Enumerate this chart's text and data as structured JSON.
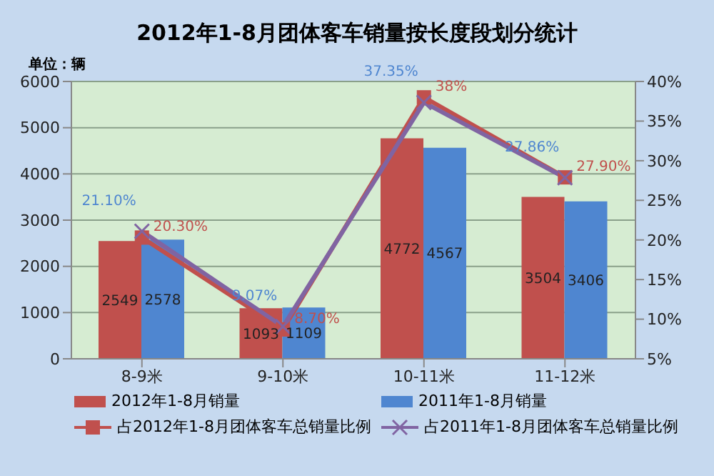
{
  "chart_data": {
    "type": "bar",
    "title": "2012年1-8月团体客车销量按长度段划分统计",
    "ylabel": "单位：辆",
    "categories": [
      "8-9米",
      "9-10米",
      "10-11米",
      "11-12米"
    ],
    "series": [
      {
        "name": "2012年1-8月销量",
        "color": "#c0504d",
        "values": [
          2549,
          1093,
          4772,
          3504
        ],
        "value_labels": [
          "2549",
          "1093",
          "4772",
          "3504"
        ]
      },
      {
        "name": "2011年1-8月销量",
        "color": "#4f86d0",
        "values": [
          2578,
          1109,
          4567,
          3406
        ],
        "value_labels": [
          "2578",
          "1109",
          "4567",
          "3406"
        ]
      },
      {
        "name": "占2012年1-8月团体客车总销量比例",
        "type": "line",
        "axis": "y2",
        "marker": "square",
        "color": "#c0504d",
        "values": [
          20.3,
          8.7,
          38,
          27.9
        ],
        "value_labels": [
          "20.30%",
          "8.70%",
          "38%",
          "27.90%"
        ]
      },
      {
        "name": "占2011年1-8月团体客车总销量比例",
        "type": "line",
        "axis": "y2",
        "marker": "cross",
        "color": "#8064a2",
        "values": [
          21.1,
          9.07,
          37.35,
          27.86
        ],
        "value_labels": [
          "21.10%",
          "9.07%",
          "37.35%",
          "27.86%"
        ]
      }
    ],
    "ylim": [
      0,
      6000
    ],
    "yticks": [
      0,
      1000,
      2000,
      3000,
      4000,
      5000,
      6000
    ],
    "y2lim": [
      5,
      40
    ],
    "y2ticks": [
      {
        "value": 5,
        "label": "5%"
      },
      {
        "value": 10,
        "label": "10%"
      },
      {
        "value": 15,
        "label": "15%"
      },
      {
        "value": 20,
        "label": "20%"
      },
      {
        "value": 25,
        "label": "25%"
      },
      {
        "value": 30,
        "label": "30%"
      },
      {
        "value": 35,
        "label": "35%"
      },
      {
        "value": 40,
        "label": "40%"
      }
    ],
    "grid": "y",
    "legend": "bottom"
  }
}
